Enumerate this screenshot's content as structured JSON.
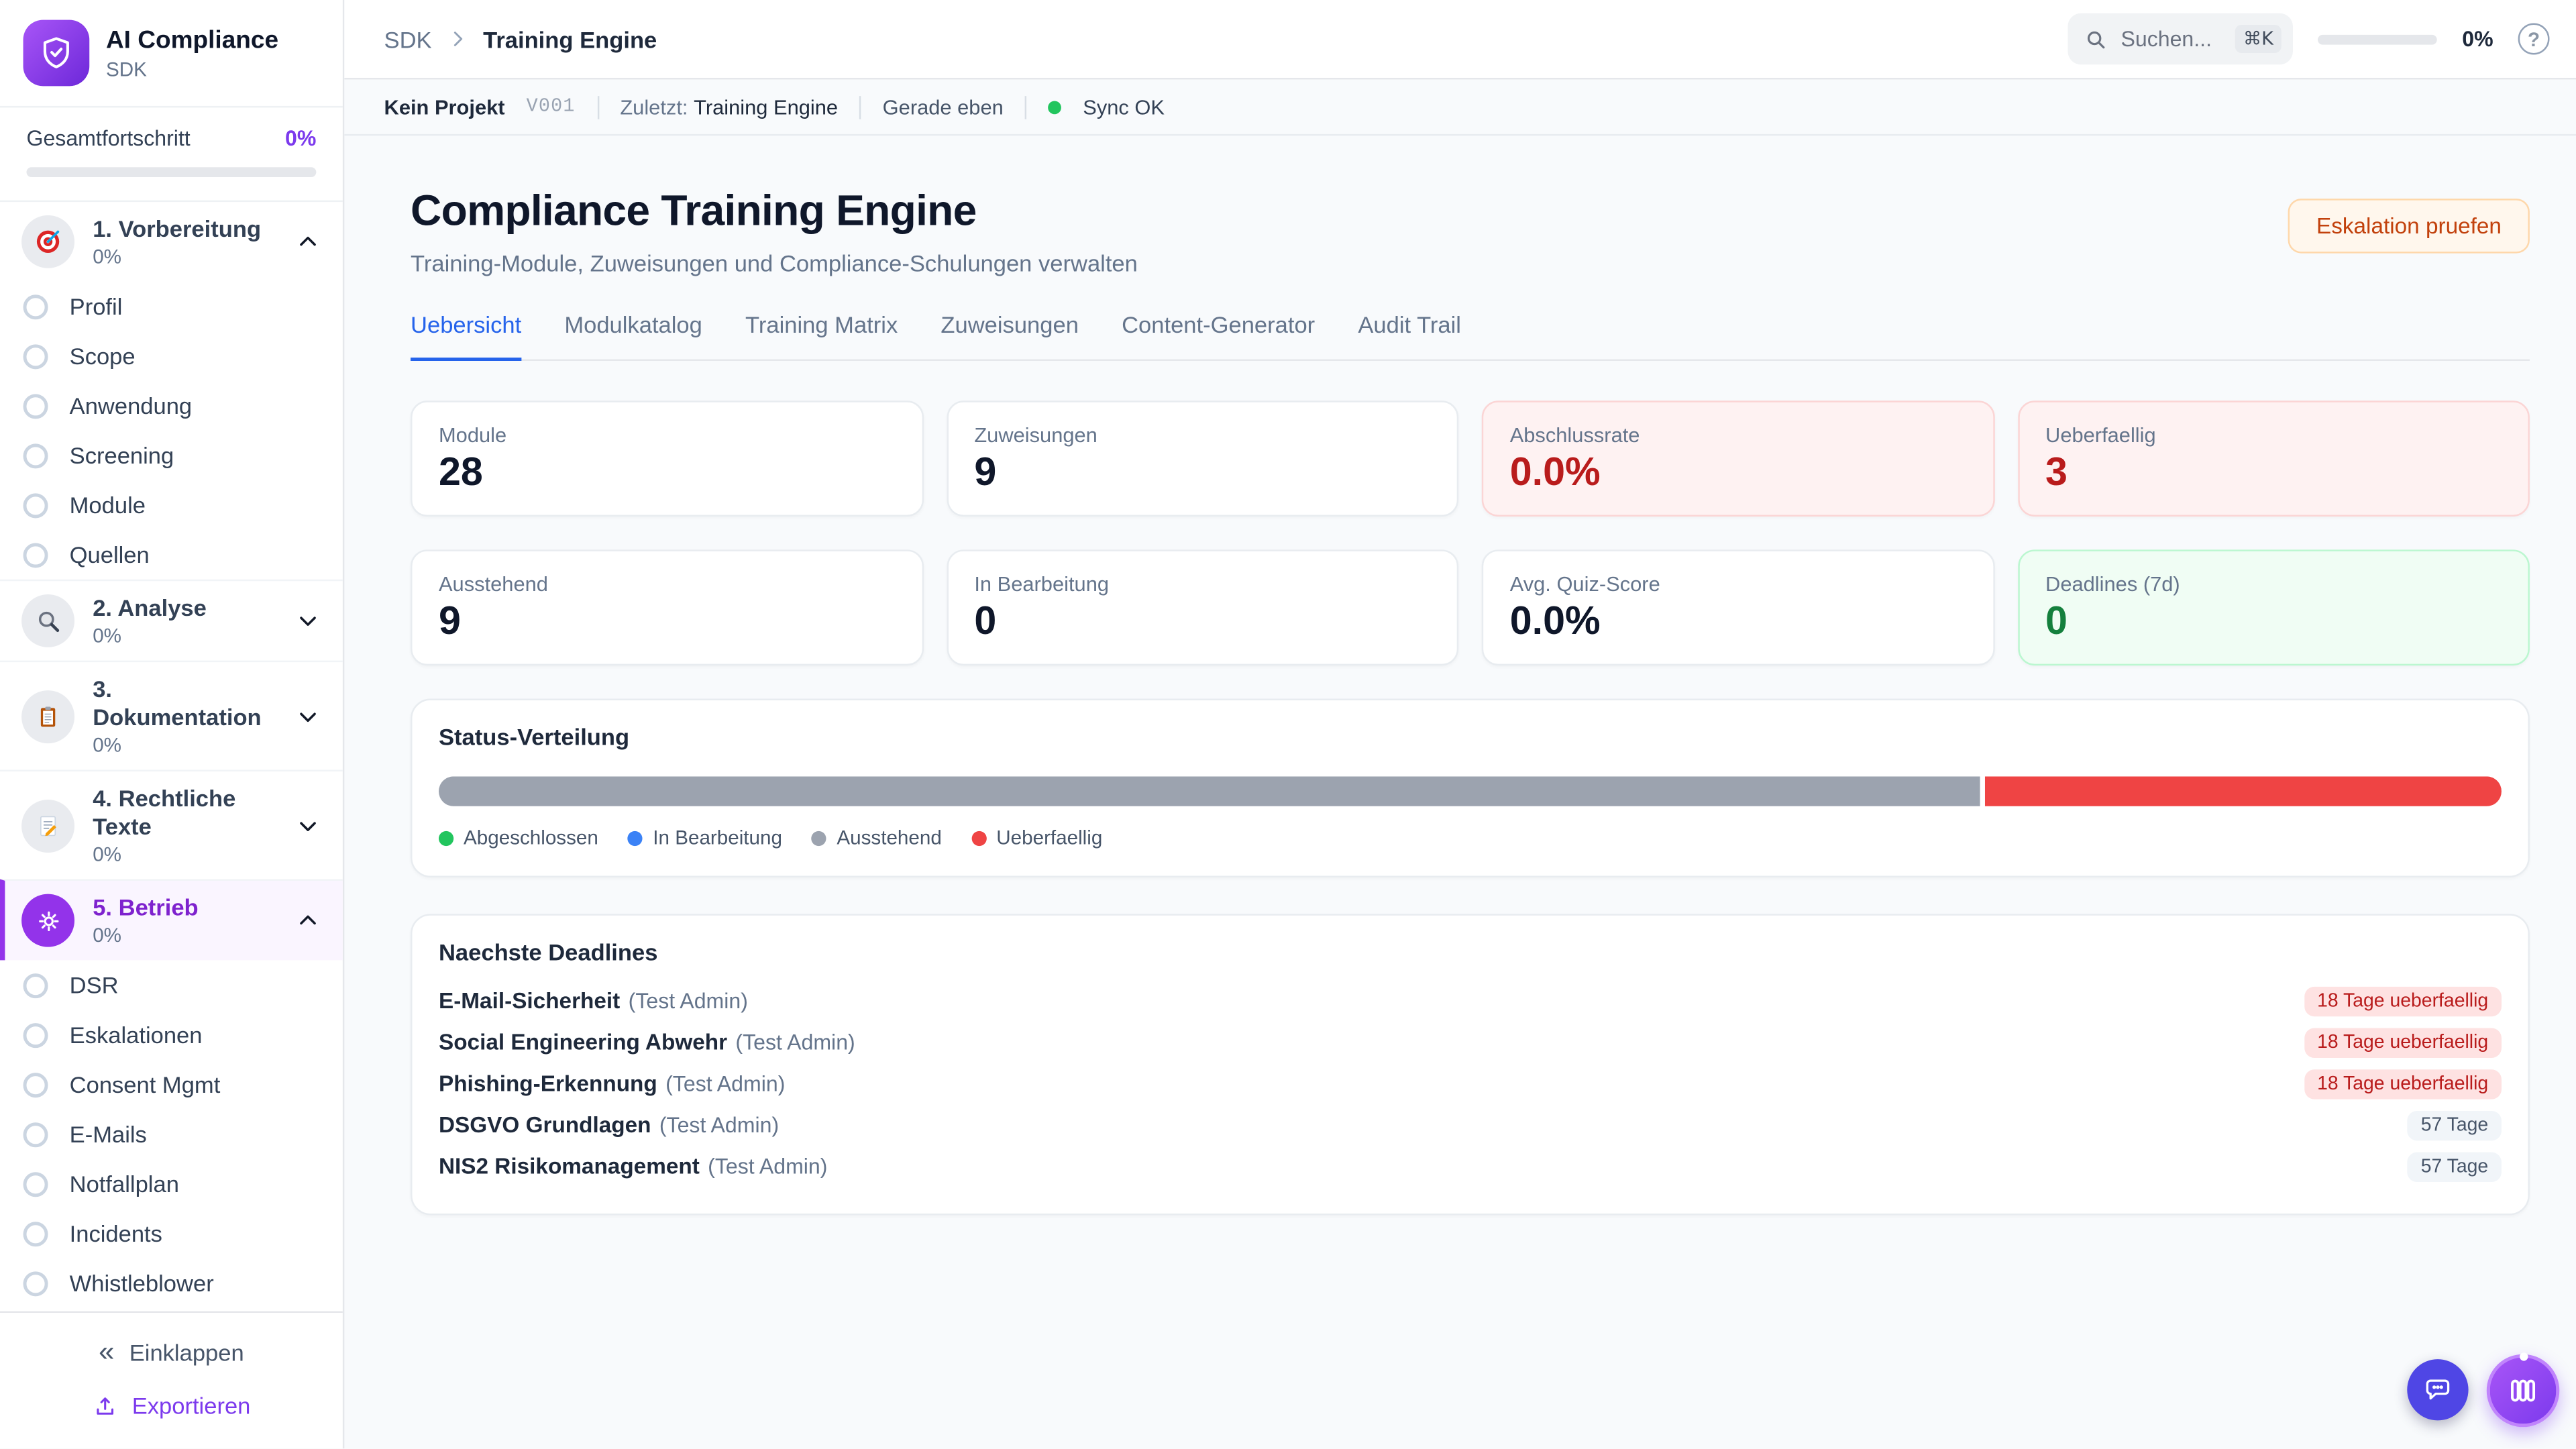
{
  "colors": {
    "accent_purple": "#7C3AED",
    "active_tab_blue": "#2563EB",
    "danger_red": "#B91C1C",
    "segment_gray": "#9CA3AF",
    "segment_red": "#EF4444",
    "success_green": "#22C55E",
    "warning_text": "#C2410C"
  },
  "sidebar": {
    "app_title": "AI Compliance",
    "app_subtitle": "SDK",
    "logo_icon": "shield-check-icon",
    "overall_label": "Gesamtfortschritt",
    "overall_value": "0%",
    "overall_progress_percent": 0,
    "sections": [
      {
        "icon": "target",
        "label": "1. Vorbereitung",
        "progress": "0%",
        "expanded": true,
        "active": false,
        "items": [
          "Profil",
          "Scope",
          "Anwendung",
          "Screening",
          "Module",
          "Quellen"
        ]
      },
      {
        "icon": "magnifier",
        "label": "2. Analyse",
        "progress": "0%",
        "expanded": false,
        "active": false,
        "items": []
      },
      {
        "icon": "clipboard",
        "label": "3. Dokumentation",
        "progress": "0%",
        "expanded": false,
        "active": false,
        "items": []
      },
      {
        "icon": "memo",
        "label": "4. Rechtliche Texte",
        "progress": "0%",
        "expanded": false,
        "active": false,
        "items": []
      },
      {
        "icon": "gear",
        "label": "5. Betrieb",
        "progress": "0%",
        "expanded": true,
        "active": true,
        "items": [
          "DSR",
          "Eskalationen",
          "Consent Mgmt",
          "E-Mails",
          "Notfallplan",
          "Incidents",
          "Whistleblower"
        ]
      }
    ],
    "collapse_label": "Einklappen",
    "export_label": "Exportieren"
  },
  "topbar": {
    "breadcrumb": {
      "root": "SDK",
      "current": "Training Engine"
    },
    "search_placeholder": "Suchen...",
    "search_kbd": "⌘K",
    "progress_value": "0%",
    "progress_percent": 0
  },
  "statusbar": {
    "project": "Kein Projekt",
    "version": "V001",
    "last_label": "Zuletzt:",
    "last_value": "Training Engine",
    "time": "Gerade eben",
    "sync": "Sync OK"
  },
  "main": {
    "title": "Compliance Training Engine",
    "subtitle": "Training-Module, Zuweisungen und Compliance-Schulungen verwalten",
    "action_button": "Eskalation pruefen",
    "tabs": [
      {
        "label": "Uebersicht",
        "active": true
      },
      {
        "label": "Modulkatalog",
        "active": false
      },
      {
        "label": "Training Matrix",
        "active": false
      },
      {
        "label": "Zuweisungen",
        "active": false
      },
      {
        "label": "Content-Generator",
        "active": false
      },
      {
        "label": "Audit Trail",
        "active": false
      }
    ],
    "stats": [
      {
        "label": "Module",
        "value": "28",
        "variant": "default"
      },
      {
        "label": "Zuweisungen",
        "value": "9",
        "variant": "default"
      },
      {
        "label": "Abschlussrate",
        "value": "0.0%",
        "variant": "danger"
      },
      {
        "label": "Ueberfaellig",
        "value": "3",
        "variant": "danger"
      },
      {
        "label": "Ausstehend",
        "value": "9",
        "variant": "default"
      },
      {
        "label": "In Bearbeitung",
        "value": "0",
        "variant": "default"
      },
      {
        "label": "Avg. Quiz-Score",
        "value": "0.0%",
        "variant": "default"
      },
      {
        "label": "Deadlines (7d)",
        "value": "0",
        "variant": "success"
      }
    ],
    "status_distribution": {
      "title": "Status-Verteilung",
      "segments": [
        {
          "name": "Ausstehend",
          "count": 9,
          "percent": 74.9,
          "color": "#9CA3AF"
        },
        {
          "name": "Ueberfaellig",
          "count": 3,
          "percent": 25.1,
          "color": "#EF4444"
        }
      ],
      "legend": [
        {
          "label": "Abgeschlossen",
          "color": "#22C55E"
        },
        {
          "label": "In Bearbeitung",
          "color": "#3B82F6"
        },
        {
          "label": "Ausstehend",
          "color": "#9CA3AF"
        },
        {
          "label": "Ueberfaellig",
          "color": "#EF4444"
        }
      ]
    },
    "deadlines": {
      "title": "Naechste Deadlines",
      "rows": [
        {
          "module": "E-Mail-Sicherheit",
          "assignee": "(Test Admin)",
          "badge": "18 Tage ueberfaellig",
          "badge_variant": "danger"
        },
        {
          "module": "Social Engineering Abwehr",
          "assignee": "(Test Admin)",
          "badge": "18 Tage ueberfaellig",
          "badge_variant": "danger"
        },
        {
          "module": "Phishing-Erkennung",
          "assignee": "(Test Admin)",
          "badge": "18 Tage ueberfaellig",
          "badge_variant": "danger"
        },
        {
          "module": "DSGVO Grundlagen",
          "assignee": "(Test Admin)",
          "badge": "57 Tage",
          "badge_variant": "neutral"
        },
        {
          "module": "NIS2 Risikomanagement",
          "assignee": "(Test Admin)",
          "badge": "57 Tage",
          "badge_variant": "neutral"
        }
      ]
    }
  },
  "fabs": [
    {
      "icon": "chat",
      "name": "chat-fab"
    },
    {
      "icon": "columns",
      "name": "columns-fab"
    }
  ]
}
